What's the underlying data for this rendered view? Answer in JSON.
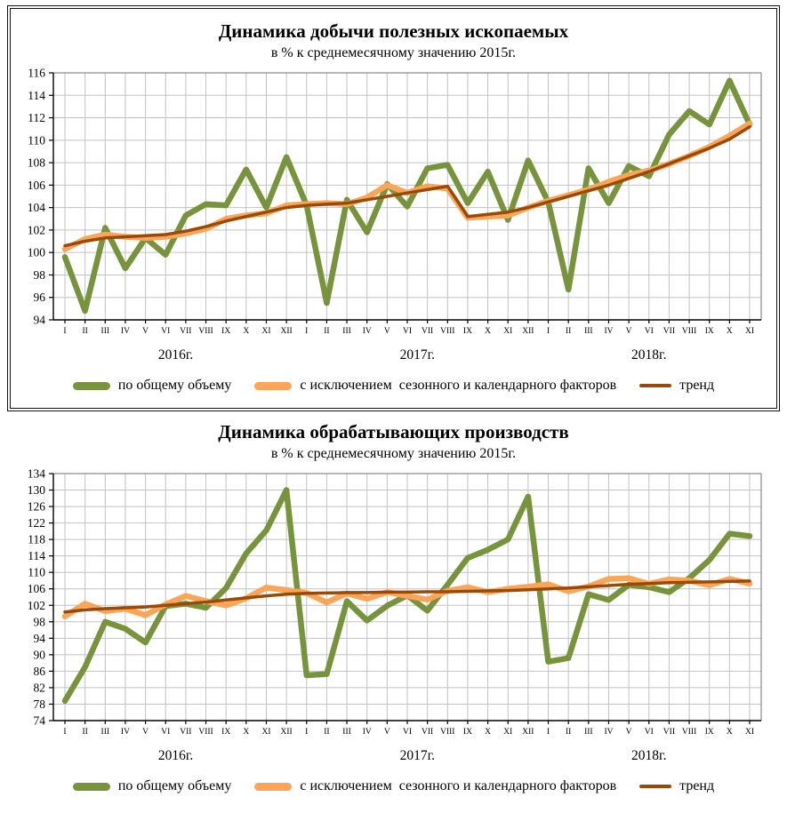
{
  "page": {
    "background": "#FFFFFF"
  },
  "colors": {
    "green": "#77933C",
    "orange": "#FAA558",
    "trend_brown": "#9A4A06",
    "grid": "#C2C2C2",
    "plot_border": "#8C8C8C",
    "axis": "#000000"
  },
  "charts": [
    {
      "title": "Динамика добычи полезных ископаемых",
      "subtitle": "в % к среднемесячному значению 2015г.",
      "framed": true,
      "chart_data": {
        "type": "line",
        "title": "Динамика добычи полезных ископаемых",
        "subtitle": "в % к среднемесячному значению 2015г.",
        "xlabel": "",
        "ylabel": "",
        "grid": true,
        "legend_position": "bottom",
        "ylim": [
          94,
          116
        ],
        "yticks": [
          94,
          96,
          98,
          100,
          102,
          104,
          106,
          108,
          110,
          112,
          114,
          116
        ],
        "x_labels": [
          "I",
          "II",
          "III",
          "IV",
          "V",
          "VI",
          "VII",
          "VIII",
          "IX",
          "X",
          "XI",
          "XII",
          "I",
          "II",
          "III",
          "IV",
          "V",
          "VI",
          "VII",
          "VIII",
          "IX",
          "X",
          "XI",
          "XII",
          "I",
          "II",
          "III",
          "IV",
          "V",
          "VI",
          "VII",
          "VIII",
          "IX",
          "X",
          "XI"
        ],
        "year_labels": [
          "2016г.",
          "2017г.",
          "2018г."
        ],
        "series": [
          {
            "name": "по общему объему",
            "color": "#77933C",
            "line_width": 6.5,
            "values": [
              99.6,
              94.8,
              102.2,
              98.6,
              101.3,
              99.8,
              103.3,
              104.3,
              104.2,
              107.4,
              104.0,
              108.5,
              104.2,
              95.5,
              104.7,
              101.8,
              106.1,
              104.1,
              107.5,
              107.8,
              104.4,
              107.2,
              102.9,
              108.2,
              104.5,
              96.7,
              107.5,
              104.4,
              107.7,
              106.8,
              110.5,
              112.6,
              111.4,
              115.3,
              111.4
            ]
          },
          {
            "name": "с исключением  сезонного и календарного факторов",
            "color": "#FAA558",
            "line_width": 6.5,
            "values": [
              100.3,
              101.2,
              101.6,
              101.4,
              101.3,
              101.4,
              101.7,
              102.1,
              103.0,
              103.3,
              103.5,
              104.2,
              104.3,
              104.4,
              104.3,
              104.9,
              106.0,
              105.3,
              105.9,
              105.7,
              103.1,
              103.2,
              103.3,
              104.0,
              104.6,
              105.1,
              105.6,
              106.3,
              106.9,
              107.3,
              107.9,
              108.6,
              109.4,
              110.4,
              111.5
            ]
          },
          {
            "name": "тренд",
            "color": "#9A4A06",
            "line_width": 3.5,
            "values": [
              100.6,
              101.0,
              101.3,
              101.4,
              101.5,
              101.6,
              101.9,
              102.3,
              102.8,
              103.2,
              103.6,
              104.0,
              104.2,
              104.3,
              104.4,
              104.7,
              105.0,
              105.3,
              105.6,
              105.9,
              103.2,
              103.4,
              103.6,
              104.0,
              104.5,
              105.0,
              105.5,
              106.0,
              106.6,
              107.2,
              107.9,
              108.6,
              109.3,
              110.1,
              111.2
            ]
          }
        ]
      }
    },
    {
      "title": "Динамика обрабатывающих производств",
      "subtitle": "в % к среднемесячному значению 2015г.",
      "framed": false,
      "chart_data": {
        "type": "line",
        "title": "Динамика обрабатывающих производств",
        "subtitle": "в % к среднемесячному значению 2015г.",
        "xlabel": "",
        "ylabel": "",
        "grid": true,
        "legend_position": "bottom",
        "ylim": [
          74,
          134
        ],
        "yticks": [
          74,
          78,
          82,
          86,
          90,
          94,
          98,
          102,
          106,
          110,
          114,
          118,
          122,
          126,
          130,
          134
        ],
        "x_labels": [
          "I",
          "II",
          "III",
          "IV",
          "V",
          "VI",
          "VII",
          "VIII",
          "IX",
          "X",
          "XI",
          "XII",
          "I",
          "II",
          "III",
          "IV",
          "V",
          "VI",
          "VII",
          "VIII",
          "IX",
          "X",
          "XI",
          "XII",
          "I",
          "II",
          "III",
          "IV",
          "V",
          "VI",
          "VII",
          "VIII",
          "IX",
          "X",
          "XI"
        ],
        "year_labels": [
          "2016г.",
          "2017г.",
          "2018г."
        ],
        "series": [
          {
            "name": "по общему объему",
            "color": "#77933C",
            "line_width": 6.5,
            "values": [
              78.8,
              87.0,
              98.0,
              96.3,
              93.0,
              101.8,
              102.4,
              101.4,
              106.2,
              114.6,
              120.2,
              130.0,
              85.0,
              85.3,
              103.0,
              98.3,
              101.9,
              104.4,
              100.7,
              107.0,
              113.5,
              115.5,
              118.0,
              128.4,
              88.3,
              89.2,
              104.7,
              103.3,
              107.0,
              106.4,
              105.2,
              108.6,
              113.0,
              119.4,
              118.8
            ]
          },
          {
            "name": "с исключением  сезонного и календарного факторов",
            "color": "#FAA558",
            "line_width": 6.5,
            "values": [
              99.3,
              102.4,
              100.6,
              101.2,
              99.6,
              102.2,
              104.3,
              103.0,
              102.0,
              103.7,
              106.3,
              105.7,
              105.0,
              102.7,
              104.9,
              103.6,
              105.2,
              104.3,
              103.4,
              105.5,
              106.4,
              105.2,
              106.0,
              106.5,
              107.1,
              105.4,
              106.6,
              108.4,
              108.6,
              107.2,
              108.3,
              108.0,
              106.9,
              108.4,
              107.3
            ]
          },
          {
            "name": "тренд",
            "color": "#9A4A06",
            "line_width": 3.5,
            "values": [
              100.4,
              100.9,
              101.2,
              101.4,
              101.6,
              102.0,
              102.4,
              102.8,
              103.3,
              103.8,
              104.3,
              104.7,
              104.9,
              105.0,
              105.1,
              105.1,
              105.2,
              105.2,
              105.3,
              105.3,
              105.4,
              105.5,
              105.6,
              105.8,
              106.0,
              106.2,
              106.5,
              106.8,
              107.1,
              107.3,
              107.5,
              107.6,
              107.7,
              107.8,
              107.9
            ]
          }
        ]
      }
    }
  ]
}
